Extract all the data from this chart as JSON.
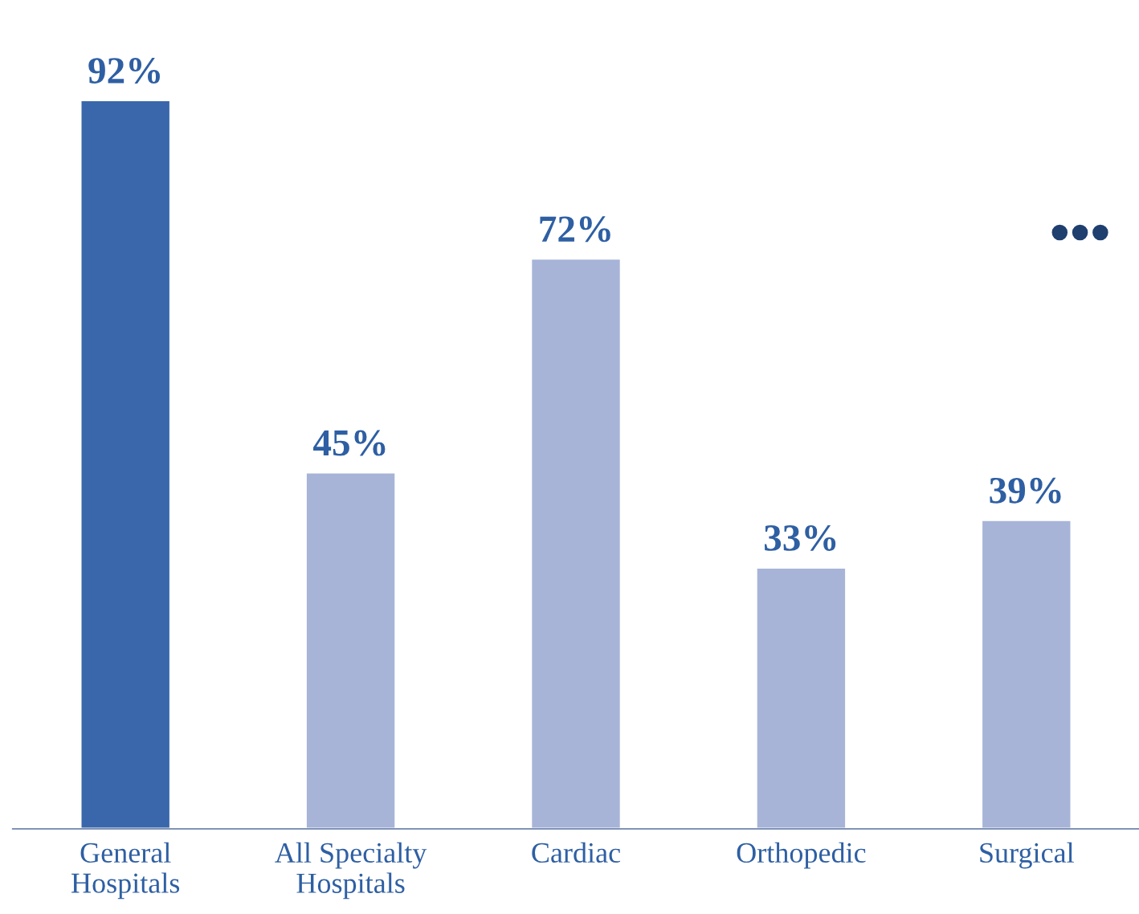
{
  "chart_data": {
    "type": "bar",
    "categories": [
      "General\nHospitals",
      "All Specialty\nHospitals",
      "Cardiac",
      "Orthopedic",
      "Surgical"
    ],
    "values": [
      92,
      45,
      72,
      33,
      39
    ],
    "colors": [
      "#3a67ab",
      "#a7b4d8",
      "#a7b4d8",
      "#a7b4d8",
      "#a7b4d8"
    ],
    "value_labels": [
      "92%",
      "45%",
      "72%",
      "33%",
      "39%"
    ],
    "annotations": [
      "•••"
    ],
    "grid": false,
    "legend": false
  }
}
